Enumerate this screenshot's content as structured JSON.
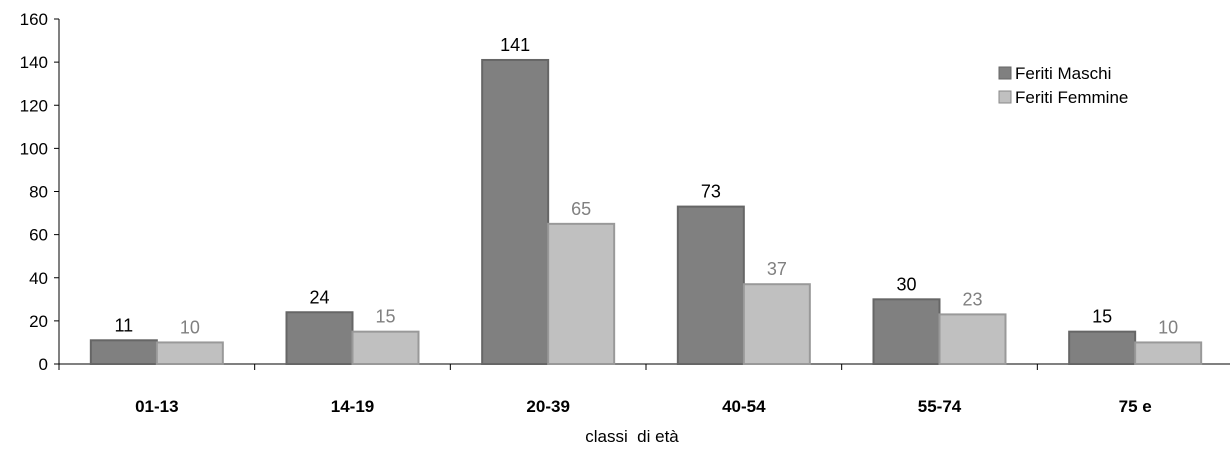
{
  "chart_data": {
    "type": "bar",
    "categories": [
      "01-13",
      "14-19",
      "20-39",
      "40-54",
      "55-74",
      "75 e"
    ],
    "series": [
      {
        "name": "Feriti Maschi",
        "values": [
          11,
          24,
          141,
          73,
          30,
          15
        ],
        "color": "#808080",
        "label_color": "#000000"
      },
      {
        "name": "Feriti Femmine",
        "values": [
          10,
          15,
          65,
          37,
          23,
          10
        ],
        "color": "#c0c0c0",
        "label_color": "#808080"
      }
    ],
    "xlabel": "classi  di età",
    "ylabel": "",
    "ylim": [
      0,
      160
    ],
    "yticks": [
      0,
      20,
      40,
      60,
      80,
      100,
      120,
      140,
      160
    ],
    "grid": false,
    "legend": "top-right"
  }
}
